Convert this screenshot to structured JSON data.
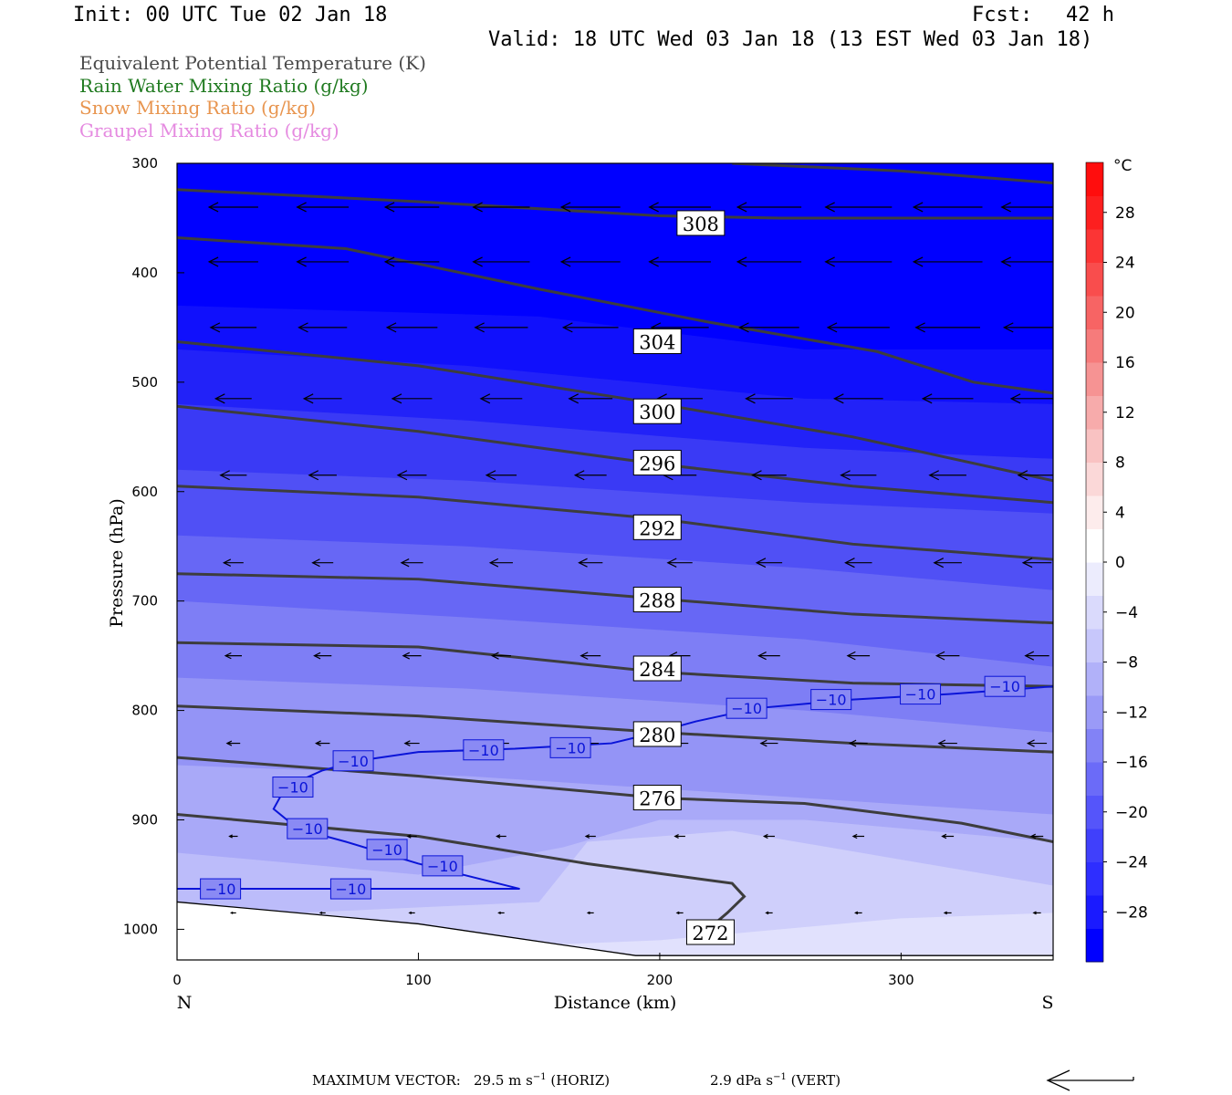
{
  "header": {
    "init": "Init: 00 UTC Tue 02 Jan 18",
    "fcst_label": "Fcst:",
    "fcst_value": "42 h",
    "valid": "Valid: 18 UTC Wed 03 Jan 18 (13 EST Wed 03 Jan 18)"
  },
  "legend": [
    {
      "label": "Equivalent Potential Temperature (K)",
      "color": "#4a4a4a"
    },
    {
      "label": "Rain Water Mixing Ratio (g/kg)",
      "color": "#1f7a1f"
    },
    {
      "label": "Snow Mixing Ratio (g/kg)",
      "color": "#e8954f"
    },
    {
      "label": "Graupel Mixing Ratio (g/kg)",
      "color": "#e58ae0"
    }
  ],
  "chart_data": {
    "type": "cross-section",
    "xlabel": "Distance (km)",
    "ylabel": "Pressure (hPa)",
    "xlim": [
      0,
      363
    ],
    "ylim": [
      1028,
      300
    ],
    "x_ticks": [
      "0",
      "100",
      "200",
      "300"
    ],
    "x_tick_values": [
      0,
      100,
      200,
      300
    ],
    "y_ticks": [
      "300",
      "400",
      "500",
      "600",
      "700",
      "800",
      "900",
      "1000"
    ],
    "y_tick_values": [
      300,
      400,
      500,
      600,
      700,
      800,
      900,
      1000
    ],
    "x_end_left": "N",
    "x_end_right": "S",
    "colorbar": {
      "unit": "°C",
      "labels": [
        "28",
        "24",
        "20",
        "16",
        "12",
        "8",
        "4",
        "0",
        "−4",
        "−8",
        "−12",
        "−16",
        "−20",
        "−24",
        "−28"
      ],
      "label_values": [
        28,
        24,
        20,
        16,
        12,
        8,
        4,
        0,
        -4,
        -8,
        -12,
        -16,
        -20,
        -24,
        -28
      ],
      "colors": [
        "#0000ff",
        "#1a1aff",
        "#2e2eff",
        "#4040fb",
        "#5555fa",
        "#6b6bf8",
        "#8282f6",
        "#9a9af7",
        "#b1b1f9",
        "#c7c7fb",
        "#dadafc",
        "#ececfd",
        "#ffffff",
        "#fdecec",
        "#fbd8d8",
        "#f9c2c2",
        "#f7abab",
        "#f69393",
        "#f67b7b",
        "#f76464",
        "#f94d4d",
        "#fb3535",
        "#fd1f1f",
        "#ff0d0d"
      ]
    },
    "theta_e_labels": [
      {
        "label": "308",
        "x": 217,
        "p": 355
      },
      {
        "label": "304",
        "x": 199,
        "p": 463
      },
      {
        "label": "300",
        "x": 199,
        "p": 527
      },
      {
        "label": "296",
        "x": 199,
        "p": 574
      },
      {
        "label": "292",
        "x": 199,
        "p": 633
      },
      {
        "label": "288",
        "x": 199,
        "p": 699
      },
      {
        "label": "284",
        "x": 199,
        "p": 762
      },
      {
        "label": "280",
        "x": 199,
        "p": 822
      },
      {
        "label": "276",
        "x": 199,
        "p": 880
      },
      {
        "label": "272",
        "x": 221,
        "p": 1003
      }
    ],
    "isotherm_labels": [
      {
        "label": "−10",
        "x": 18,
        "p": 963
      },
      {
        "label": "−10",
        "x": 72,
        "p": 963
      },
      {
        "label": "−10",
        "x": 54,
        "p": 908
      },
      {
        "label": "−10",
        "x": 48,
        "p": 870
      },
      {
        "label": "−10",
        "x": 73,
        "p": 846
      },
      {
        "label": "−10",
        "x": 110,
        "p": 942
      },
      {
        "label": "−10",
        "x": 87,
        "p": 927
      },
      {
        "label": "−10",
        "x": 127,
        "p": 836
      },
      {
        "label": "−10",
        "x": 163,
        "p": 834
      },
      {
        "label": "−10",
        "x": 236,
        "p": 798
      },
      {
        "label": "−10",
        "x": 271,
        "p": 790
      },
      {
        "label": "−10",
        "x": 308,
        "p": 785
      },
      {
        "label": "−10",
        "x": 343,
        "p": 778
      }
    ]
  },
  "footer": {
    "max_vector_label": "MAXIMUM VECTOR:",
    "horiz_value": "29.5 m s",
    "horiz_exp": "−1",
    "horiz_tag": "(HORIZ)",
    "vert_value": "2.9 dPa s",
    "vert_exp": "−1",
    "vert_tag": "(VERT)"
  }
}
